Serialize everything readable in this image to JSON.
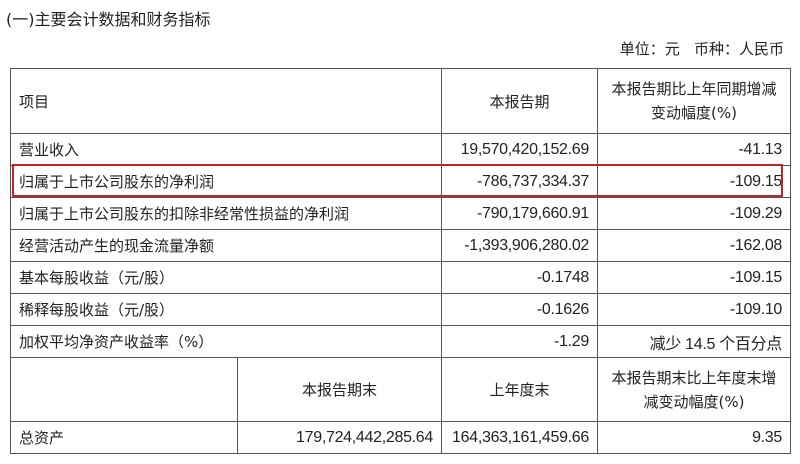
{
  "title": "(一)主要会计数据和财务指标",
  "unit_line": "单位：元   币种：人民币",
  "header": {
    "item": "项目",
    "current": "本报告期",
    "change": "本报告期比上年同期增减变动幅度(%)"
  },
  "rows": [
    {
      "item": "营业收入",
      "current": "19,570,420,152.69",
      "change": "-41.13"
    },
    {
      "item": "归属于上市公司股东的净利润",
      "current": "-786,737,334.37",
      "change": "-109.15",
      "highlighted": true
    },
    {
      "item": "归属于上市公司股东的扣除非经常性损益的净利润",
      "current": "-790,179,660.91",
      "change": "-109.29"
    },
    {
      "item": "经营活动产生的现金流量净额",
      "current": "-1,393,906,280.02",
      "change": "-162.08"
    },
    {
      "item": "基本每股收益（元/股）",
      "current": "-0.1748",
      "change": "-109.15"
    },
    {
      "item": "稀释每股收益（元/股）",
      "current": "-0.1626",
      "change": "-109.10"
    },
    {
      "item": "加权平均净资产收益率（%）",
      "current": "-1.29",
      "change": "减少 14.5 个百分点"
    }
  ],
  "header2": {
    "period_end": "本报告期末",
    "prior_year_end": "上年度末",
    "change": "本报告期末比上年度末增减变动幅度(%)"
  },
  "assets": {
    "item": "总资产",
    "period_end": "179,724,442,285.64",
    "prior_year_end": "164,363,161,459.66",
    "change": "9.35"
  },
  "highlight_color": "#c0272d"
}
